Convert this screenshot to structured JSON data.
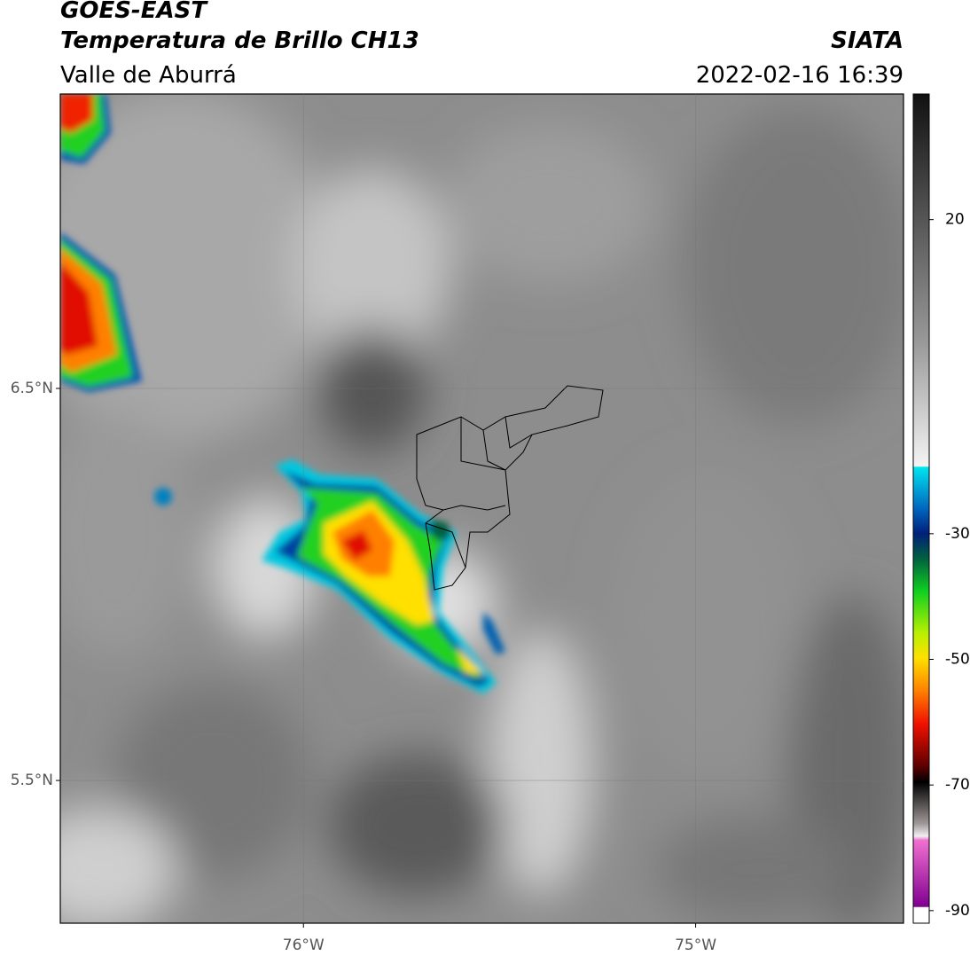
{
  "header": {
    "satellite": "GOES-EAST",
    "product": "Temperatura de Brillo CH13",
    "source": "SIATA",
    "region": "Valle de Aburrá",
    "datetime": "2022-02-16 16:39"
  },
  "map": {
    "lonlim": [
      -76.62,
      -74.47
    ],
    "latlim": [
      5.136,
      7.251
    ],
    "xticks": [
      {
        "value": -76,
        "label": "76°W"
      },
      {
        "value": -75,
        "label": "75°W"
      }
    ],
    "yticks": [
      {
        "value": 6.5,
        "label": "6.5°N"
      },
      {
        "value": 5.5,
        "label": "5.5°N"
      }
    ]
  },
  "colorbar": {
    "range": [
      -92,
      40
    ],
    "ticks": [
      20,
      -30,
      -50,
      -70,
      -90
    ]
  }
}
